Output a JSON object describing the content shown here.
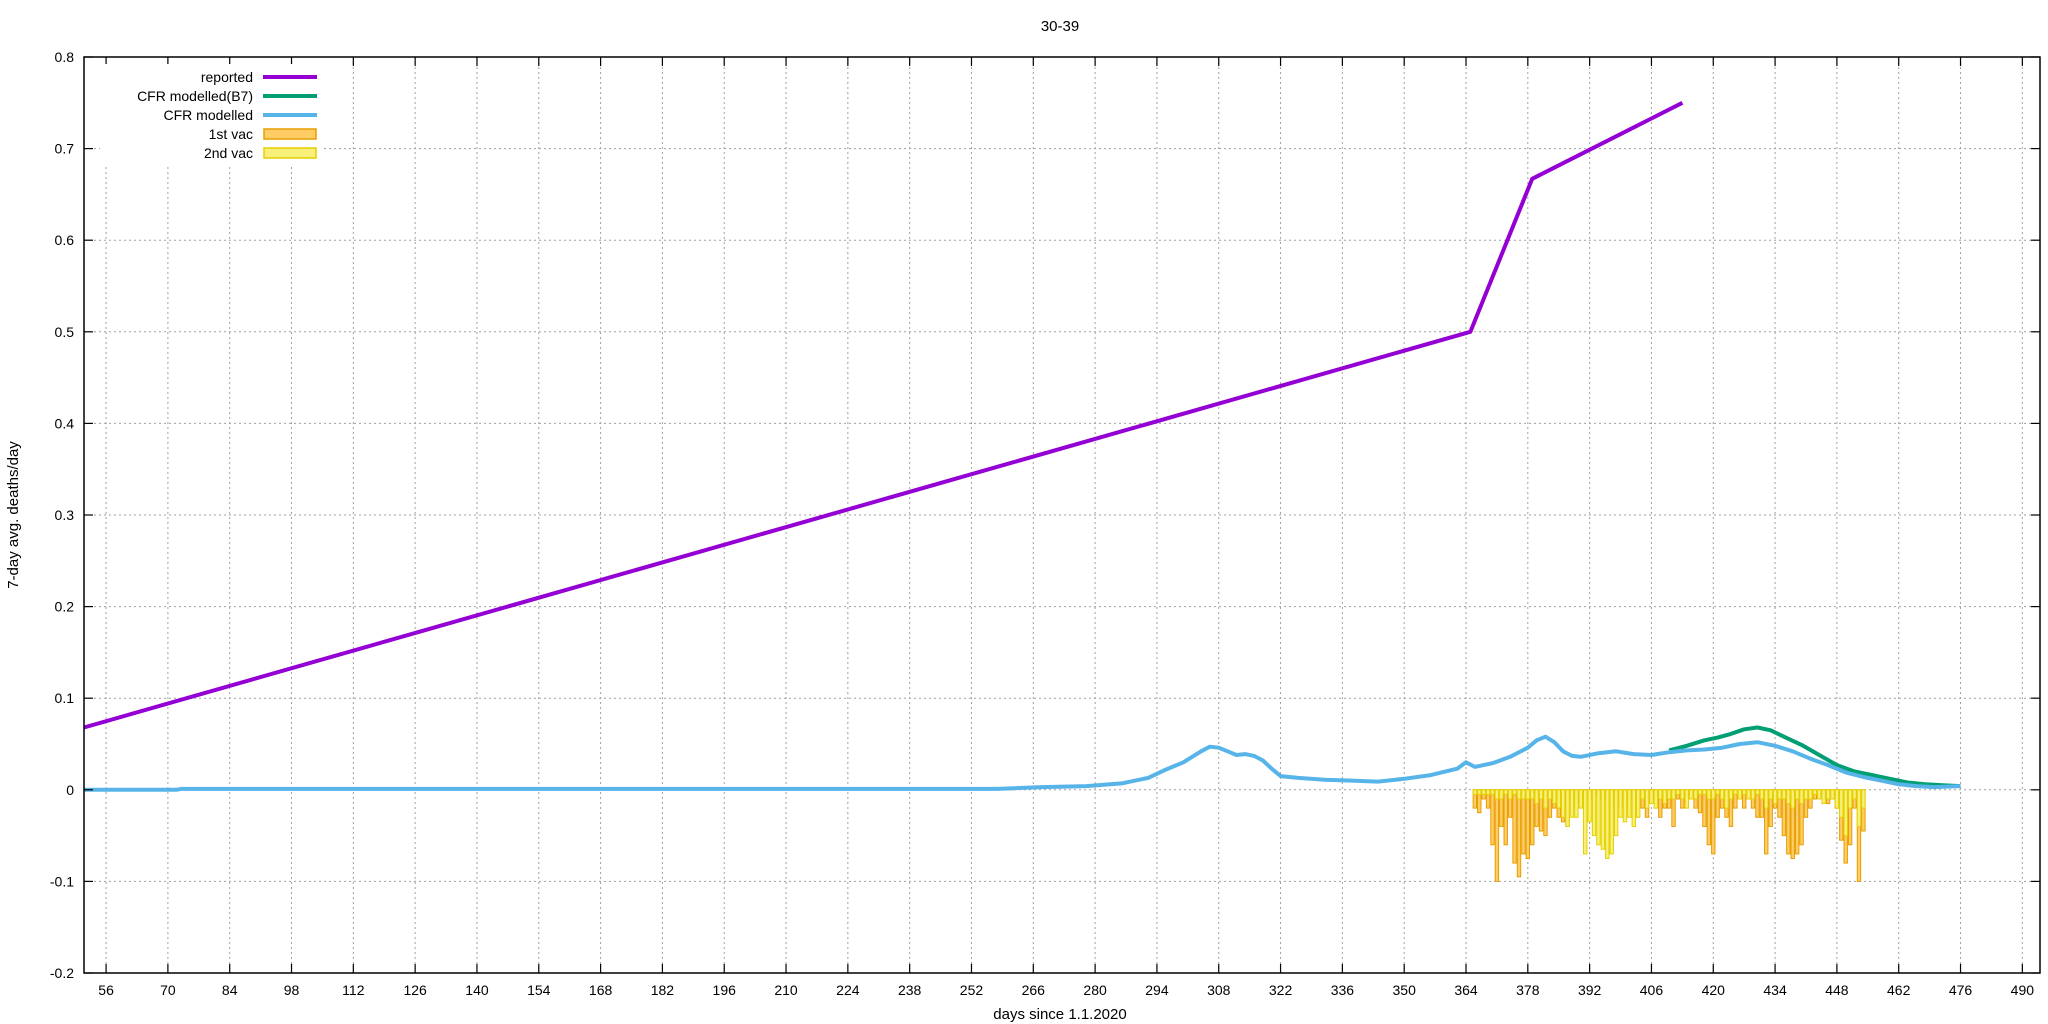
{
  "chart_data": {
    "type": "line",
    "title": "30-39",
    "xlabel": "days since 1.1.2020",
    "ylabel": "7-day avg. deaths/day",
    "xlim": [
      51,
      494
    ],
    "ylim": [
      -0.2,
      0.8
    ],
    "x_ticks": [
      56,
      70,
      84,
      98,
      112,
      126,
      140,
      154,
      168,
      182,
      196,
      210,
      224,
      238,
      252,
      266,
      280,
      294,
      308,
      322,
      336,
      350,
      364,
      378,
      392,
      406,
      420,
      434,
      448,
      462,
      476,
      490
    ],
    "y_ticks": [
      -0.2,
      -0.1,
      0,
      0.1,
      0.2,
      0.3,
      0.4,
      0.5,
      0.6,
      0.7,
      0.8
    ],
    "grid": true,
    "legend_position": "top-left",
    "series": [
      {
        "name": "reported",
        "kind": "line",
        "color": "#9400d3",
        "points": [
          [
            51,
            0.068
          ],
          [
            365,
            0.5
          ],
          [
            379,
            0.667
          ],
          [
            413,
            0.75
          ]
        ]
      },
      {
        "name": "CFR modelled(B7)",
        "kind": "line",
        "color": "#009e73",
        "points": [
          [
            410,
            0.043
          ],
          [
            414,
            0.048
          ],
          [
            418,
            0.054
          ],
          [
            421,
            0.057
          ],
          [
            424,
            0.061
          ],
          [
            427,
            0.066
          ],
          [
            430,
            0.068
          ],
          [
            433,
            0.065
          ],
          [
            436,
            0.058
          ],
          [
            440,
            0.049
          ],
          [
            444,
            0.038
          ],
          [
            448,
            0.027
          ],
          [
            452,
            0.02
          ],
          [
            456,
            0.016
          ],
          [
            460,
            0.012
          ],
          [
            464,
            0.008
          ],
          [
            468,
            0.006
          ],
          [
            472,
            0.005
          ],
          [
            476,
            0.004
          ]
        ]
      },
      {
        "name": "CFR modelled",
        "kind": "line",
        "color": "#56b4e9",
        "points": [
          [
            51,
            0.0
          ],
          [
            72,
            0.0
          ],
          [
            73,
            0.001
          ],
          [
            258,
            0.001
          ],
          [
            268,
            0.003
          ],
          [
            278,
            0.004
          ],
          [
            286,
            0.007
          ],
          [
            292,
            0.013
          ],
          [
            296,
            0.022
          ],
          [
            300,
            0.03
          ],
          [
            304,
            0.042
          ],
          [
            306,
            0.047
          ],
          [
            308,
            0.046
          ],
          [
            310,
            0.042
          ],
          [
            312,
            0.038
          ],
          [
            314,
            0.039
          ],
          [
            316,
            0.037
          ],
          [
            318,
            0.032
          ],
          [
            320,
            0.023
          ],
          [
            322,
            0.015
          ],
          [
            326,
            0.013
          ],
          [
            332,
            0.011
          ],
          [
            338,
            0.01
          ],
          [
            344,
            0.009
          ],
          [
            350,
            0.012
          ],
          [
            356,
            0.016
          ],
          [
            362,
            0.023
          ],
          [
            364,
            0.03
          ],
          [
            366,
            0.025
          ],
          [
            370,
            0.029
          ],
          [
            374,
            0.036
          ],
          [
            378,
            0.046
          ],
          [
            380,
            0.054
          ],
          [
            382,
            0.058
          ],
          [
            384,
            0.052
          ],
          [
            386,
            0.042
          ],
          [
            388,
            0.037
          ],
          [
            390,
            0.036
          ],
          [
            394,
            0.04
          ],
          [
            398,
            0.042
          ],
          [
            402,
            0.039
          ],
          [
            406,
            0.038
          ],
          [
            410,
            0.041
          ],
          [
            414,
            0.043
          ],
          [
            418,
            0.044
          ],
          [
            422,
            0.046
          ],
          [
            426,
            0.05
          ],
          [
            430,
            0.052
          ],
          [
            434,
            0.048
          ],
          [
            438,
            0.042
          ],
          [
            442,
            0.034
          ],
          [
            446,
            0.027
          ],
          [
            450,
            0.019
          ],
          [
            454,
            0.014
          ],
          [
            458,
            0.01
          ],
          [
            462,
            0.006
          ],
          [
            466,
            0.004
          ],
          [
            470,
            0.003
          ],
          [
            476,
            0.004
          ]
        ]
      },
      {
        "name": "1st vac",
        "kind": "bar",
        "color": "#ffcc66",
        "stroke": "#e69f00",
        "x_start": 366,
        "values": [
          -0.02,
          -0.025,
          -0.01,
          -0.02,
          -0.06,
          -0.1,
          -0.04,
          -0.06,
          -0.03,
          -0.08,
          -0.095,
          -0.07,
          -0.075,
          -0.06,
          -0.04,
          -0.045,
          -0.05,
          -0.03,
          -0.02,
          -0.03,
          -0.035,
          -0.04,
          -0.01,
          -0.02,
          -0.015,
          -0.01,
          -0.01,
          -0.005,
          -0.005,
          -0.01,
          -0.01,
          -0.015,
          -0.02,
          -0.015,
          -0.02,
          -0.025,
          -0.01,
          -0.01,
          -0.02,
          -0.03,
          -0.015,
          -0.01,
          -0.03,
          -0.02,
          -0.02,
          -0.04,
          -0.01,
          -0.02,
          -0.015,
          -0.01,
          -0.02,
          -0.025,
          -0.04,
          -0.06,
          -0.07,
          -0.03,
          -0.02,
          -0.03,
          -0.04,
          -0.02,
          -0.01,
          -0.02,
          -0.01,
          -0.02,
          -0.03,
          -0.03,
          -0.07,
          -0.04,
          -0.02,
          -0.03,
          -0.05,
          -0.07,
          -0.075,
          -0.07,
          -0.06,
          -0.03,
          -0.02,
          -0.01,
          -0.005,
          -0.01,
          -0.015,
          -0.01,
          -0.02,
          -0.055,
          -0.08,
          -0.06,
          -0.02,
          -0.1,
          -0.045
        ]
      },
      {
        "name": "2nd vac",
        "kind": "bar",
        "color": "#f8f07a",
        "stroke": "#e4d000",
        "x_start": 366,
        "values": [
          -0.005,
          -0.005,
          -0.005,
          -0.005,
          -0.005,
          -0.01,
          -0.01,
          -0.005,
          -0.01,
          -0.005,
          -0.01,
          -0.01,
          -0.01,
          -0.01,
          -0.015,
          -0.01,
          -0.02,
          -0.01,
          -0.015,
          -0.02,
          -0.03,
          -0.04,
          -0.03,
          -0.03,
          -0.02,
          -0.07,
          -0.035,
          -0.05,
          -0.06,
          -0.065,
          -0.075,
          -0.07,
          -0.05,
          -0.03,
          -0.035,
          -0.03,
          -0.04,
          -0.03,
          -0.01,
          -0.02,
          -0.015,
          -0.02,
          -0.01,
          -0.015,
          -0.01,
          -0.01,
          -0.005,
          -0.01,
          -0.02,
          -0.01,
          -0.01,
          -0.005,
          -0.005,
          -0.01,
          -0.01,
          -0.005,
          -0.01,
          -0.02,
          -0.01,
          -0.005,
          -0.01,
          -0.005,
          -0.01,
          -0.01,
          -0.005,
          -0.01,
          -0.02,
          -0.01,
          -0.015,
          -0.01,
          -0.01,
          -0.015,
          -0.02,
          -0.01,
          -0.015,
          -0.01,
          -0.01,
          -0.005,
          -0.01,
          -0.015,
          -0.01,
          -0.01,
          -0.02,
          -0.03,
          -0.05,
          -0.02,
          -0.01,
          -0.04,
          -0.02
        ]
      }
    ]
  }
}
